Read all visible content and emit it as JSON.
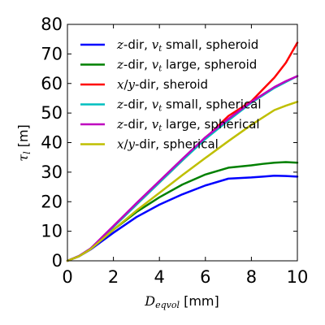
{
  "chart_data": {
    "type": "line",
    "xlabel": {
      "symbol": "D",
      "subscript": "eqvol",
      "unit": " [mm]"
    },
    "ylabel": {
      "symbol": "τ",
      "subscript": "l",
      "unit": " [m]"
    },
    "xlim": [
      0,
      10
    ],
    "ylim": [
      0,
      80
    ],
    "xticks": [
      "0",
      "2",
      "4",
      "6",
      "8",
      "10"
    ],
    "yticks": [
      "0",
      "10",
      "20",
      "30",
      "40",
      "50",
      "60",
      "70",
      "80"
    ],
    "grid": false,
    "legend_position": "top-left",
    "x": [
      0,
      0.5,
      1,
      2,
      3,
      4,
      5,
      6,
      7,
      8,
      8.5,
      9,
      9.5,
      10
    ],
    "series": [
      {
        "name_parts": [
          {
            "t": "z",
            "m": true
          },
          {
            "t": "-dir, "
          },
          {
            "t": "v",
            "m": true
          },
          {
            "t": "t",
            "m": true,
            "sub": true
          },
          {
            "t": " small, spheroid"
          }
        ],
        "color": "#0000ff",
        "values": [
          0,
          1.5,
          3.8,
          9.5,
          14.8,
          19,
          22.5,
          25.5,
          27.8,
          28.2,
          28.5,
          28.8,
          28.7,
          28.5
        ]
      },
      {
        "name_parts": [
          {
            "t": "z",
            "m": true
          },
          {
            "t": "-dir, "
          },
          {
            "t": "v",
            "m": true
          },
          {
            "t": "t",
            "m": true,
            "sub": true
          },
          {
            "t": " large, spheroid"
          }
        ],
        "color": "#008000",
        "values": [
          0,
          1.6,
          4,
          10.5,
          16.5,
          21.5,
          25.8,
          29.2,
          31.5,
          32.3,
          32.8,
          33.2,
          33.4,
          33.2
        ]
      },
      {
        "name_parts": [
          {
            "t": "x",
            "m": true
          },
          {
            "t": "/"
          },
          {
            "t": "y",
            "m": true
          },
          {
            "t": "-dir, sheroid"
          }
        ],
        "color": "#ff0000",
        "values": [
          0,
          1.6,
          4.1,
          11.5,
          19,
          26.5,
          34,
          41.5,
          49,
          54,
          58,
          62,
          67,
          73.8
        ]
      },
      {
        "name_parts": [
          {
            "t": "z",
            "m": true
          },
          {
            "t": "-dir, "
          },
          {
            "t": "v",
            "m": true
          },
          {
            "t": "t",
            "m": true,
            "sub": true
          },
          {
            "t": " small, spherical"
          }
        ],
        "color": "#00bfbf",
        "values": [
          0,
          1.6,
          4.1,
          11.5,
          19,
          26.5,
          34,
          41.2,
          47.5,
          53.5,
          56,
          58.5,
          60.5,
          62.5
        ]
      },
      {
        "name_parts": [
          {
            "t": "z",
            "m": true
          },
          {
            "t": "-dir, "
          },
          {
            "t": "v",
            "m": true
          },
          {
            "t": "t",
            "m": true,
            "sub": true
          },
          {
            "t": " large, spherical"
          }
        ],
        "color": "#bf00bf",
        "values": [
          0,
          1.6,
          4.1,
          11.8,
          19.5,
          27,
          34.5,
          41.8,
          48,
          53.8,
          56.3,
          58.8,
          60.8,
          62.5
        ]
      },
      {
        "name_parts": [
          {
            "t": "x",
            "m": true
          },
          {
            "t": "/"
          },
          {
            "t": "y",
            "m": true
          },
          {
            "t": "-dir, spherical"
          }
        ],
        "color": "#bfbf00",
        "values": [
          0,
          1.5,
          3.9,
          10.5,
          17,
          23,
          29,
          34.8,
          40.5,
          46,
          48.5,
          51,
          52.5,
          53.8
        ]
      }
    ]
  }
}
